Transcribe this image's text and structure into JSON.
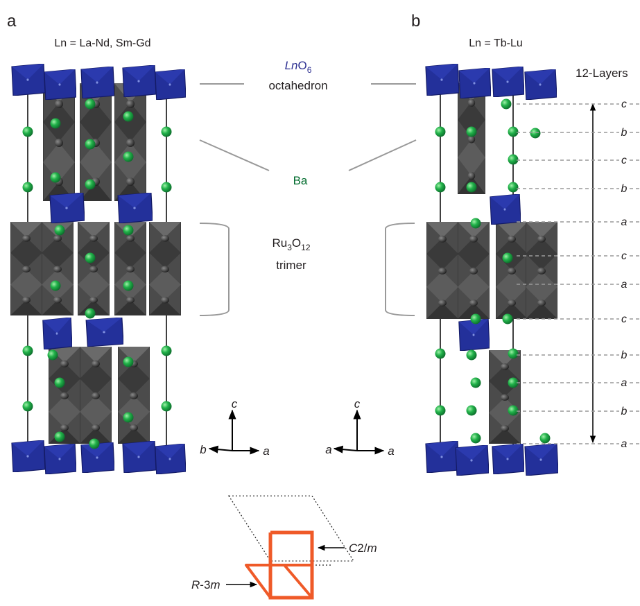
{
  "panels": [
    {
      "label": "a",
      "subtitle": "Ln = La-Nd, Sm-Gd",
      "axes": {
        "vertical": "c",
        "left": "b",
        "right": "a"
      }
    },
    {
      "label": "b",
      "subtitle": "Ln = Tb-Lu",
      "axes": {
        "vertical": "c",
        "left": "a",
        "right": "a"
      }
    }
  ],
  "annotations": {
    "octahedron": {
      "element": "Ln",
      "oxygen": "O",
      "count": "6",
      "name": "octahedron"
    },
    "barium": "Ba",
    "trimer": {
      "metal": "Ru",
      "metal_count": "3",
      "oxygen": "O",
      "oxygen_count": "12",
      "name": "trimer"
    }
  },
  "stacking": {
    "title": "12-Layers",
    "layers": [
      "c",
      "b",
      "c",
      "b",
      "a",
      "c",
      "a",
      "c",
      "b",
      "a",
      "b",
      "a"
    ]
  },
  "unit_cells": {
    "monoclinic": {
      "parts": [
        "C",
        "2/",
        "m"
      ]
    },
    "rhombohedral": {
      "parts": [
        "R",
        "-3",
        "m"
      ]
    }
  }
}
